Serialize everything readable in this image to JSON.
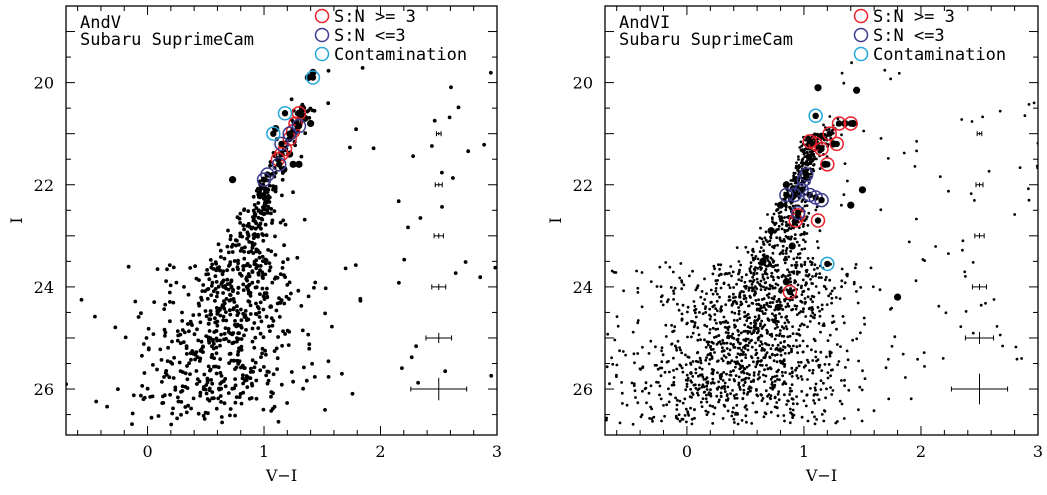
{
  "chart_data": [
    {
      "type": "scatter",
      "title": "",
      "labels": [
        "AndV",
        "Subaru SuprimeCam"
      ],
      "xlabel": "V−I",
      "ylabel": "I",
      "xlim": [
        -0.7,
        3.0
      ],
      "ylim": [
        26.9,
        18.5
      ],
      "x_ticks": [
        0,
        1,
        2,
        3
      ],
      "y_ticks": [
        20,
        22,
        24,
        26
      ],
      "x_ticks_label": [
        "0",
        "1",
        "2",
        "3"
      ],
      "y_ticks_label": [
        "20",
        "22",
        "24",
        "26"
      ],
      "legend": [
        {
          "name": "S:N >= 3",
          "color": "#e8202a"
        },
        {
          "name": "S:N <=3",
          "color": "#3b3b8f"
        },
        {
          "name": "Contamination",
          "color": "#22a6d8"
        }
      ],
      "legend_placement": "top-right",
      "seed": 7,
      "field_ranges": {
        "i_min": 22.0,
        "i_max": 26.7
      },
      "big_dots": [
        [
          1.42,
          19.8
        ],
        [
          1.38,
          19.9
        ],
        [
          1.3,
          20.6
        ],
        [
          1.35,
          20.7
        ],
        [
          1.33,
          20.5
        ],
        [
          1.4,
          20.8
        ],
        [
          1.22,
          21.4
        ],
        [
          1.17,
          21.7
        ],
        [
          1.25,
          21.6
        ],
        [
          1.3,
          21.6
        ],
        [
          0.73,
          21.9
        ],
        [
          1.1,
          20.9
        ]
      ],
      "sn_high": [
        [
          1.3,
          20.6
        ],
        [
          1.27,
          20.8
        ],
        [
          1.25,
          20.95
        ],
        [
          1.22,
          21.1
        ],
        [
          1.18,
          21.3
        ],
        [
          1.15,
          21.4
        ],
        [
          1.12,
          21.5
        ]
      ],
      "sn_low": [
        [
          1.3,
          20.85
        ],
        [
          1.22,
          21.0
        ],
        [
          1.15,
          21.2
        ],
        [
          1.03,
          21.8
        ],
        [
          1.0,
          21.9
        ],
        [
          1.13,
          21.6
        ]
      ],
      "contamination": [
        [
          1.42,
          19.9
        ],
        [
          1.18,
          20.6
        ],
        [
          1.08,
          21.0
        ]
      ],
      "error_bars": [
        {
          "x": 2.5,
          "i": 21.0,
          "dx": 0.02,
          "di": 0.03
        },
        {
          "x": 2.5,
          "i": 22.0,
          "dx": 0.03,
          "di": 0.04
        },
        {
          "x": 2.5,
          "i": 23.0,
          "dx": 0.04,
          "di": 0.05
        },
        {
          "x": 2.5,
          "i": 24.0,
          "dx": 0.06,
          "di": 0.06
        },
        {
          "x": 2.5,
          "i": 25.0,
          "dx": 0.11,
          "di": 0.1
        },
        {
          "x": 2.5,
          "i": 26.0,
          "dx": 0.24,
          "di": 0.22
        }
      ]
    },
    {
      "type": "scatter",
      "title": "",
      "labels": [
        "AndVI",
        "Subaru SuprimeCam"
      ],
      "xlabel": "V−I",
      "ylabel": "I",
      "xlim": [
        -0.7,
        3.0
      ],
      "ylim": [
        26.9,
        18.5
      ],
      "x_ticks": [
        0,
        1,
        2,
        3
      ],
      "y_ticks": [
        20,
        22,
        24,
        26
      ],
      "x_ticks_label": [
        "0",
        "1",
        "2",
        "3"
      ],
      "y_ticks_label": [
        "20",
        "22",
        "24",
        "26"
      ],
      "legend": [
        {
          "name": "S:N >= 3",
          "color": "#e8202a"
        },
        {
          "name": "S:N <=3",
          "color": "#3b3b8f"
        },
        {
          "name": "Contamination",
          "color": "#22a6d8"
        }
      ],
      "legend_placement": "top-right",
      "seed": 13,
      "field_ranges": {
        "i_min": 21.0,
        "i_max": 26.7
      },
      "big_dots": [
        [
          1.12,
          20.1
        ],
        [
          1.45,
          20.15
        ],
        [
          1.35,
          20.8
        ],
        [
          1.42,
          20.8
        ],
        [
          1.05,
          21.2
        ],
        [
          1.15,
          21.05
        ],
        [
          1.25,
          21.2
        ],
        [
          1.18,
          21.6
        ],
        [
          1.5,
          22.1
        ],
        [
          1.4,
          22.4
        ],
        [
          0.85,
          22.0
        ],
        [
          0.8,
          22.4
        ],
        [
          0.72,
          22.9
        ],
        [
          0.65,
          23.5
        ],
        [
          1.8,
          24.2
        ],
        [
          0.78,
          24.4
        ],
        [
          0.9,
          23.2
        ],
        [
          0.85,
          23.9
        ]
      ],
      "sn_high": [
        [
          1.1,
          21.2
        ],
        [
          1.05,
          21.15
        ],
        [
          1.15,
          21.3
        ],
        [
          1.22,
          21.0
        ],
        [
          1.3,
          20.8
        ],
        [
          1.4,
          20.8
        ],
        [
          1.28,
          21.2
        ],
        [
          1.2,
          21.6
        ],
        [
          0.95,
          22.6
        ],
        [
          0.93,
          22.7
        ],
        [
          1.12,
          22.7
        ],
        [
          0.88,
          24.1
        ]
      ],
      "sn_low": [
        [
          1.0,
          21.9
        ],
        [
          0.98,
          22.1
        ],
        [
          1.05,
          22.2
        ],
        [
          1.1,
          22.25
        ],
        [
          0.92,
          22.2
        ],
        [
          1.15,
          22.3
        ],
        [
          0.85,
          22.2
        ],
        [
          0.95,
          22.55
        ],
        [
          1.02,
          21.8
        ]
      ],
      "contamination": [
        [
          1.1,
          20.65
        ],
        [
          1.2,
          23.55
        ]
      ],
      "error_bars": [
        {
          "x": 2.5,
          "i": 21.0,
          "dx": 0.02,
          "di": 0.03
        },
        {
          "x": 2.5,
          "i": 22.0,
          "dx": 0.03,
          "di": 0.04
        },
        {
          "x": 2.5,
          "i": 23.0,
          "dx": 0.04,
          "di": 0.05
        },
        {
          "x": 2.5,
          "i": 24.0,
          "dx": 0.06,
          "di": 0.06
        },
        {
          "x": 2.5,
          "i": 25.0,
          "dx": 0.12,
          "di": 0.12
        },
        {
          "x": 2.5,
          "i": 26.0,
          "dx": 0.24,
          "di": 0.3
        }
      ]
    }
  ]
}
